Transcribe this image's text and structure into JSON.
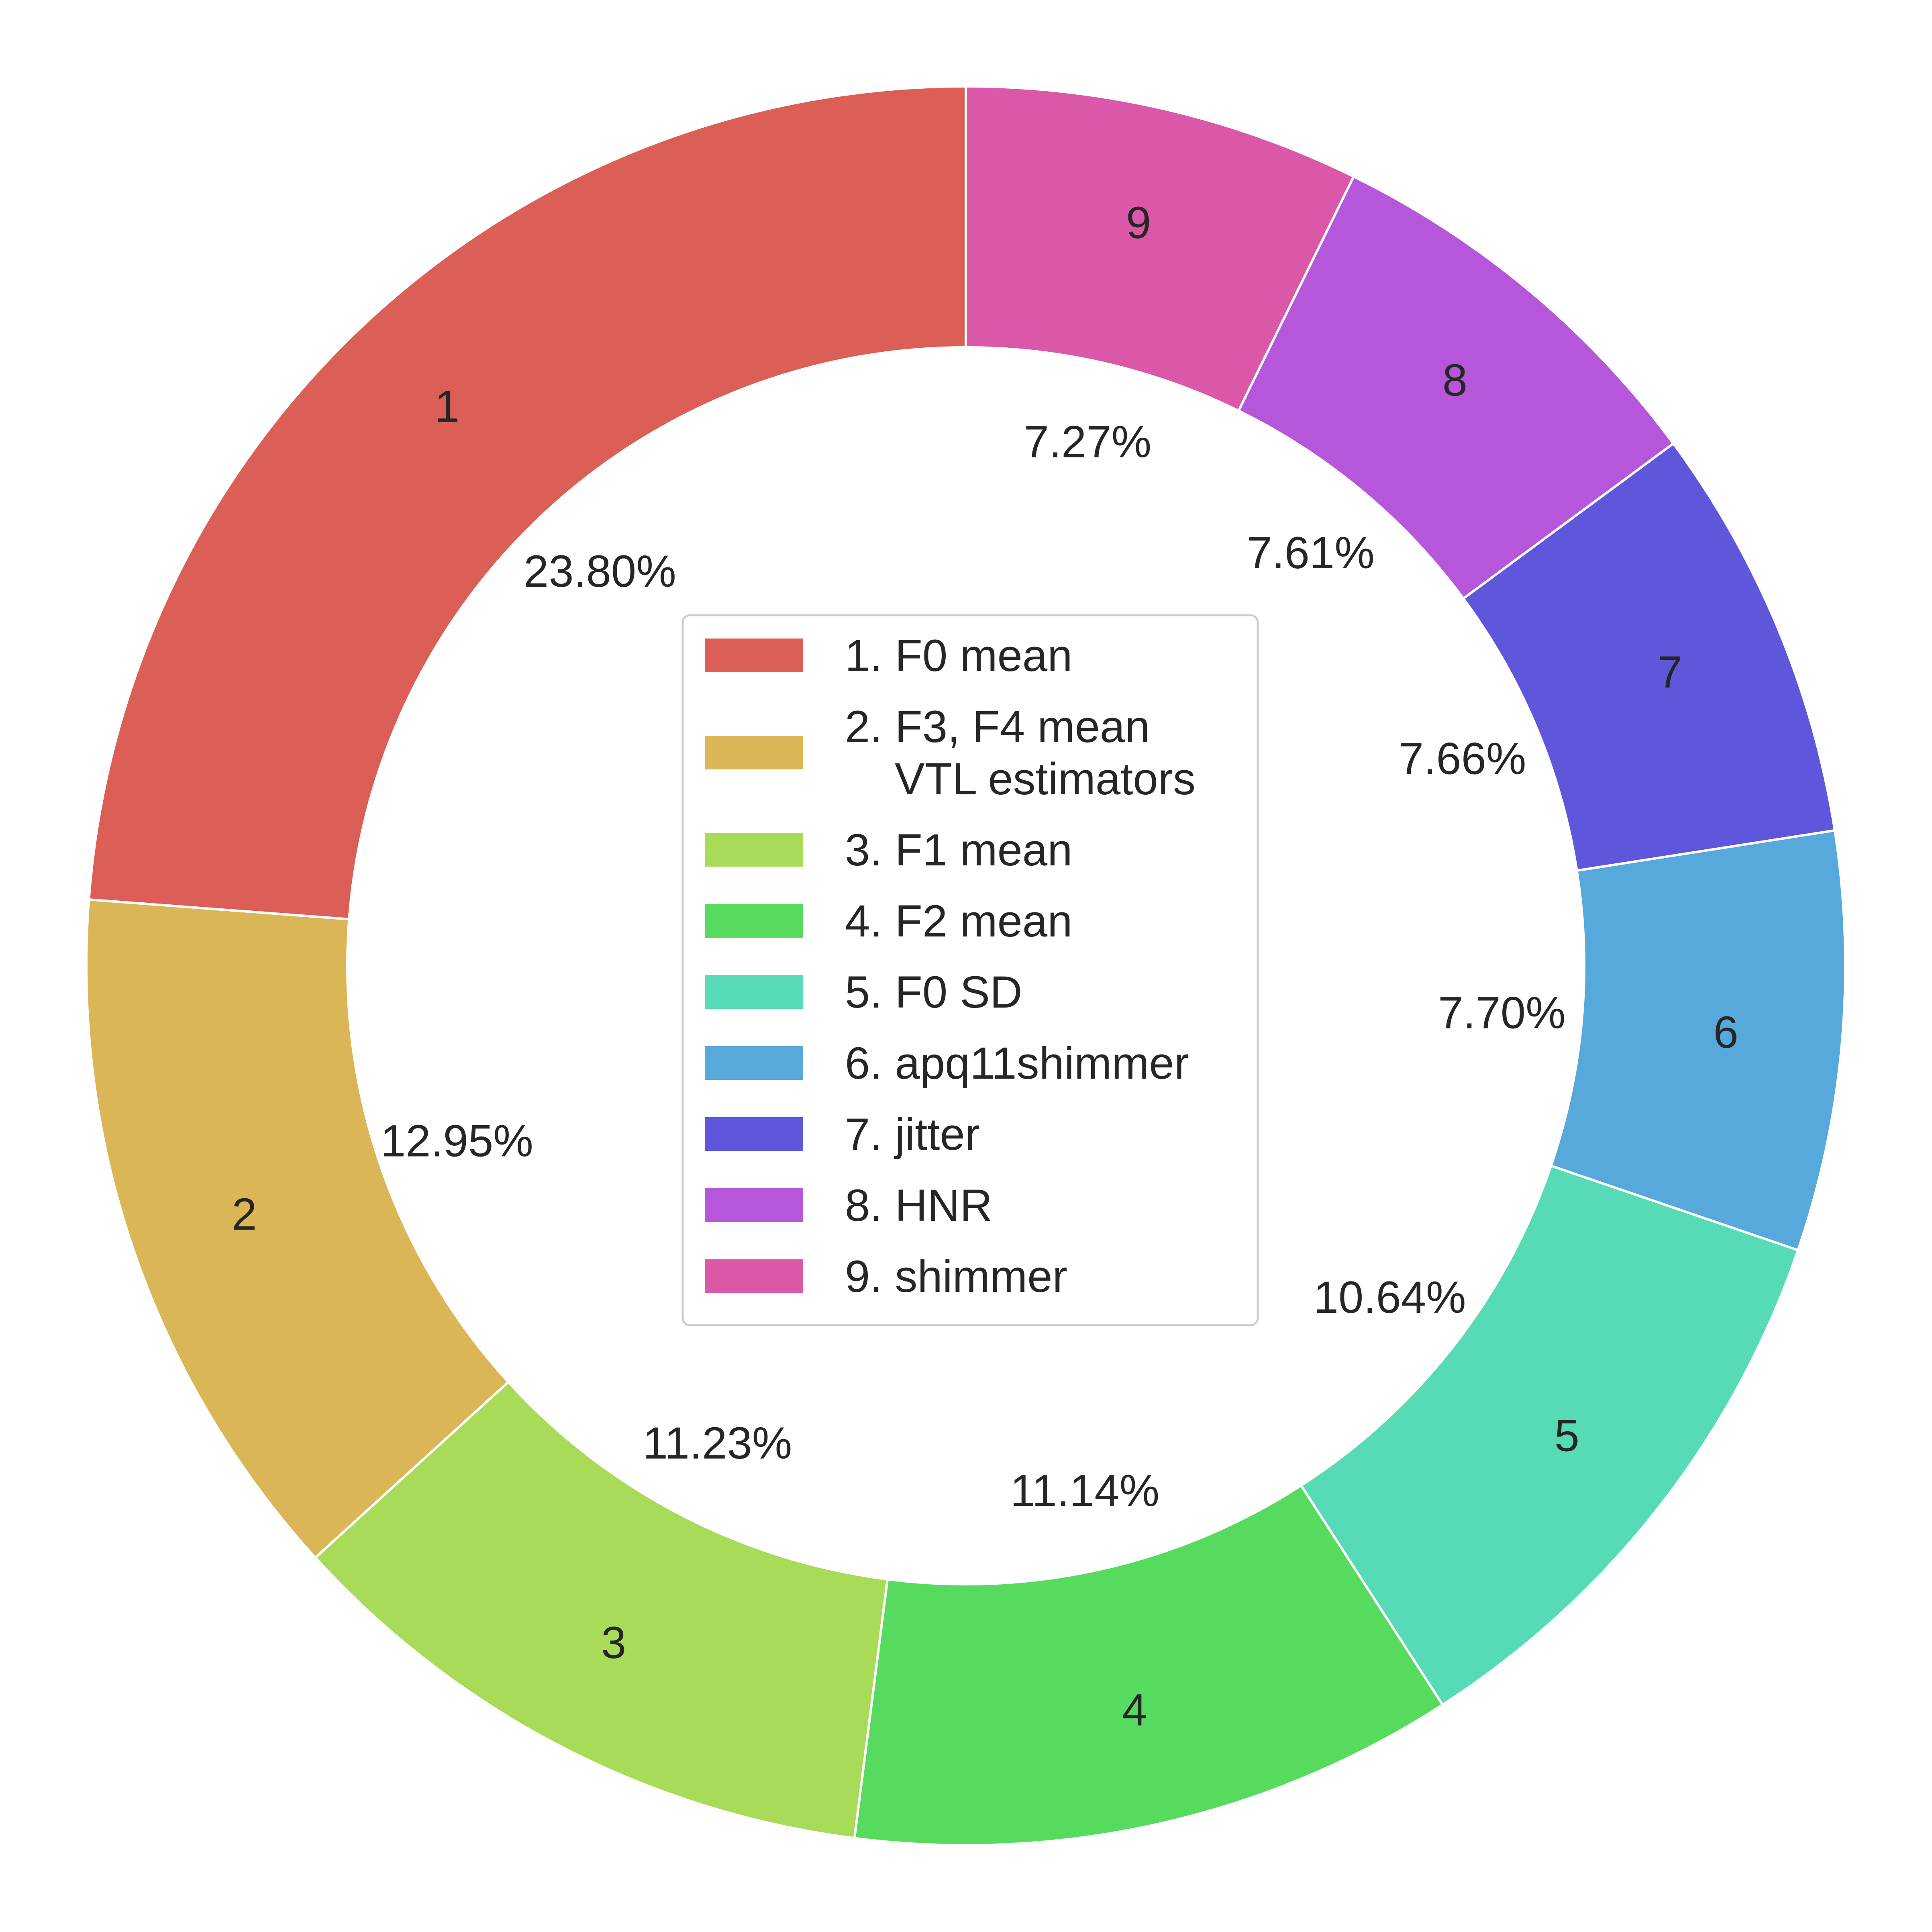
{
  "chart_data": {
    "type": "pie",
    "style": "donut",
    "start": "top, counter-clockwise",
    "slices": [
      {
        "index": "1",
        "legend": "1. F0 mean",
        "value": 23.8,
        "pct_label": "23.80%",
        "color": "#db5f57"
      },
      {
        "index": "2",
        "legend": "2. F3, F4 mean\n    VTL estimators",
        "value": 12.95,
        "pct_label": "12.95%",
        "color": "#dbb657"
      },
      {
        "index": "3",
        "legend": "3. F1 mean",
        "value": 11.23,
        "pct_label": "11.23%",
        "color": "#a8db57"
      },
      {
        "index": "4",
        "legend": "4. F2 mean",
        "value": 11.14,
        "pct_label": "11.14%",
        "color": "#57db5f"
      },
      {
        "index": "5",
        "legend": "5. F0 SD",
        "value": 10.64,
        "pct_label": "10.64%",
        "color": "#57dbb6"
      },
      {
        "index": "6",
        "legend": "6. apq11shimmer",
        "value": 7.7,
        "pct_label": "7.70%",
        "color": "#57a8db"
      },
      {
        "index": "7",
        "legend": "7. jitter",
        "value": 7.66,
        "pct_label": "7.66%",
        "color": "#5f57db"
      },
      {
        "index": "8",
        "legend": "8. HNR",
        "value": 7.61,
        "pct_label": "7.61%",
        "color": "#b657db"
      },
      {
        "index": "9",
        "legend": "9. shimmer",
        "value": 7.27,
        "pct_label": "7.27%",
        "color": "#db57a8"
      }
    ],
    "legend_position": "center"
  }
}
